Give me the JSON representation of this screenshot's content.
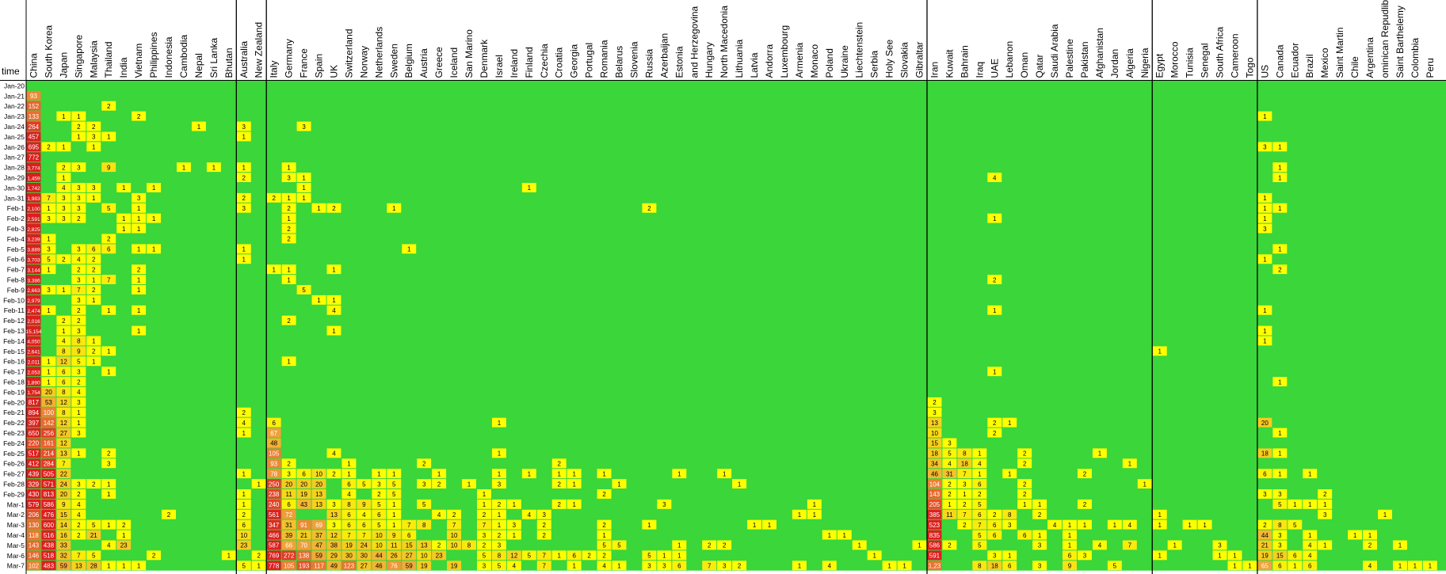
{
  "chart_data": {
    "type": "heatmap",
    "corner_label": "time",
    "columns": [
      "China",
      "South Korea",
      "Japan",
      "Singapore",
      "Malaysia",
      "Thailand",
      "India",
      "Vietnam",
      "Philippines",
      "Indonesia",
      "Cambodia",
      "Nepal",
      "Sri Lanka",
      "Bhutan",
      "Australia",
      "New Zealand",
      "Italy",
      "Germany",
      "France",
      "Spain",
      "UK",
      "Switzerland",
      "Norway",
      "Netherlands",
      "Sweden",
      "Belgium",
      "Austria",
      "Greece",
      "Iceland",
      "San Marino",
      "Denmark",
      "Israel",
      "Ireland",
      "Finland",
      "Czechia",
      "Croatia",
      "Georgia",
      "Portugal",
      "Romania",
      "Belarus",
      "Slovenia",
      "Russia",
      "Azerbaijan",
      "Estonia",
      "and Herzegovina",
      "Hungary",
      "North Macedonia",
      "Lithuania",
      "Latvia",
      "Andorra",
      "Luxembourg",
      "Armenia",
      "Monaco",
      "Poland",
      "Ukraine",
      "Liechtenstein",
      "Serbia",
      "Holy See",
      "Slovakia",
      "Gibraltar",
      "Iran",
      "Kuwait",
      "Bahrain",
      "Iraq",
      "UAE",
      "Lebanon",
      "Oman",
      "Qatar",
      "Saudi Arabia",
      "Palestine",
      "Pakistan",
      "Afghanistan",
      "Jordan",
      "Algeria",
      "Nigeria",
      "Egypt",
      "Morocco",
      "Tunisia",
      "Senegal",
      "South Africa",
      "Cameroon",
      "Togo",
      "US",
      "Canada",
      "Ecuador",
      "Brazil",
      "Mexico",
      "Saint Martin",
      "Chile",
      "Argentina",
      "ominican Repudlib",
      "Saint Barthelemy",
      "Colombia",
      "Peru"
    ],
    "group_breaks_after": [
      "Bhutan",
      "New Zealand",
      "Gibraltar",
      "Nigeria",
      "Togo"
    ],
    "rows": [
      "Jan-20",
      "Jan-21",
      "Jan-22",
      "Jan-23",
      "Jan-24",
      "Jan-25",
      "Jan-26",
      "Jan-27",
      "Jan-28",
      "Jan-29",
      "Jan-30",
      "Jan-31",
      "Feb-1",
      "Feb-2",
      "Feb-3",
      "Feb-4",
      "Feb-5",
      "Feb-6",
      "Feb-7",
      "Feb-8",
      "Feb-9",
      "Feb-10",
      "Feb-11",
      "Feb-12",
      "Feb-13",
      "Feb-14",
      "Feb-15",
      "Feb-16",
      "Feb-17",
      "Feb-18",
      "Feb-19",
      "Feb-20",
      "Feb-21",
      "Feb-22",
      "Feb-23",
      "Feb-24",
      "Feb-25",
      "Feb-26",
      "Feb-27",
      "Feb-28",
      "Feb-29",
      "Mar-1",
      "Mar-2",
      "Mar-3",
      "Mar-4",
      "Mar-5",
      "Mar-6",
      "Mar-7"
    ],
    "color_scale": {
      "zero": "#3ad63a",
      "low": "#ffff00",
      "mid": "#f2a93b",
      "high": "#dd1e1e"
    },
    "cells": {
      "Jan-21": {
        "China": "93"
      },
      "Jan-22": {
        "China": "152",
        "Thailand": "2"
      },
      "Jan-23": {
        "China": "133",
        "Japan": "1",
        "Singapore": "1",
        "Vietnam": "2",
        "US": "1"
      },
      "Jan-24": {
        "China": "264",
        "Singapore": "2",
        "Malaysia": "2",
        "Nepal": "1",
        "Australia": "3",
        "France": "3"
      },
      "Jan-25": {
        "China": "457",
        "Singapore": "1",
        "Malaysia": "3",
        "Thailand": "1",
        "Australia": "1"
      },
      "Jan-26": {
        "China": "695",
        "South Korea": "2",
        "Japan": "1",
        "Malaysia": "1",
        "US": "3",
        "Canada": "1"
      },
      "Jan-27": {
        "China": "772"
      },
      "Jan-28": {
        "China": "3,774",
        "Japan": "2",
        "Singapore": "3",
        "Thailand": "9",
        "Cambodia": "1",
        "Sri Lanka": "1",
        "Australia": "1",
        "Germany": "1",
        "Canada": "1"
      },
      "Jan-29": {
        "China": "1,459",
        "Japan": "1",
        "Australia": "2",
        "Germany": "3",
        "France": "1",
        "UAE": "4",
        "Canada": "1"
      },
      "Jan-30": {
        "China": "1,742",
        "Japan": "4",
        "Singapore": "3",
        "Malaysia": "3",
        "India": "1",
        "Philippines": "1",
        "France": "1",
        "Finland": "1"
      },
      "Jan-31": {
        "China": "1,983",
        "South Korea": "7",
        "Japan": "3",
        "Singapore": "3",
        "Malaysia": "1",
        "Vietnam": "3",
        "Australia": "2",
        "Italy": "2",
        "Germany": "1",
        "France": "1",
        "US": "1"
      },
      "Feb-1": {
        "China": "2,100",
        "South Korea": "1",
        "Japan": "3",
        "Singapore": "3",
        "Thailand": "5",
        "Vietnam": "1",
        "Australia": "3",
        "Germany": "2",
        "Spain": "1",
        "UK": "2",
        "Sweden": "1",
        "Russia": "2",
        "US": "1",
        "Canada": "1"
      },
      "Feb-2": {
        "China": "2,591",
        "South Korea": "3",
        "Japan": "3",
        "Singapore": "2",
        "India": "1",
        "Vietnam": "1",
        "Philippines": "1",
        "Germany": "1",
        "UAE": "1",
        "US": "1"
      },
      "Feb-3": {
        "China": "2,825",
        "India": "1",
        "Vietnam": "1",
        "Germany": "2",
        "US": "3"
      },
      "Feb-4": {
        "China": "3,239",
        "South Korea": "1",
        "Thailand": "2",
        "Germany": "2"
      },
      "Feb-5": {
        "China": "3,889",
        "South Korea": "3",
        "Singapore": "3",
        "Malaysia": "6",
        "Thailand": "6",
        "Vietnam": "1",
        "Philippines": "1",
        "Australia": "1",
        "Belgium": "1",
        "Canada": "1"
      },
      "Feb-6": {
        "China": "3,703",
        "South Korea": "5",
        "Japan": "2",
        "Singapore": "4",
        "Malaysia": "2",
        "Australia": "1",
        "US": "1"
      },
      "Feb-7": {
        "China": "3,144",
        "South Korea": "1",
        "Singapore": "2",
        "Malaysia": "2",
        "Vietnam": "2",
        "Italy": "1",
        "Germany": "1",
        "UK": "1",
        "Canada": "2"
      },
      "Feb-8": {
        "China": "3,386",
        "Singapore": "3",
        "Malaysia": "1",
        "Thailand": "7",
        "Vietnam": "1",
        "Germany": "1",
        "UAE": "2"
      },
      "Feb-9": {
        "China": "2,663",
        "South Korea": "3",
        "Japan": "1",
        "Singapore": "7",
        "Malaysia": "2",
        "Vietnam": "1",
        "France": "5"
      },
      "Feb-10": {
        "China": "2,979",
        "Singapore": "3",
        "Malaysia": "1",
        "Spain": "1",
        "UK": "1"
      },
      "Feb-11": {
        "China": "2,474",
        "South Korea": "1",
        "Singapore": "2",
        "Thailand": "1",
        "Vietnam": "1",
        "UK": "4",
        "UAE": "1",
        "US": "1"
      },
      "Feb-12": {
        "China": "2,016",
        "Japan": "2",
        "Singapore": "2",
        "Germany": "2"
      },
      "Feb-13": {
        "China": "15,154",
        "Japan": "1",
        "Singapore": "3",
        "Vietnam": "1",
        "UK": "1",
        "US": "1"
      },
      "Feb-14": {
        "China": "4,050",
        "Japan": "4",
        "Singapore": "8",
        "Malaysia": "1",
        "US": "1"
      },
      "Feb-15": {
        "China": "2,641",
        "Japan": "8",
        "Singapore": "9",
        "Malaysia": "2",
        "Thailand": "1",
        "Egypt": "1"
      },
      "Feb-16": {
        "China": "2,011",
        "South Korea": "1",
        "Japan": "12",
        "Singapore": "5",
        "Malaysia": "1",
        "Germany": "1"
      },
      "Feb-17": {
        "China": "2,053",
        "South Korea": "1",
        "Japan": "6",
        "Singapore": "3",
        "Thailand": "1",
        "UAE": "1"
      },
      "Feb-18": {
        "China": "1,890",
        "South Korea": "1",
        "Japan": "6",
        "Singapore": "2",
        "Canada": "1"
      },
      "Feb-19": {
        "China": "1,754",
        "South Korea": "20",
        "Japan": "8",
        "Singapore": "4"
      },
      "Feb-20": {
        "China": "817",
        "South Korea": "53",
        "Japan": "12",
        "Singapore": "3",
        "Iran": "2"
      },
      "Feb-21": {
        "China": "894",
        "South Korea": "100",
        "Japan": "8",
        "Singapore": "1",
        "Australia": "2",
        "Iran": "3"
      },
      "Feb-22": {
        "China": "397",
        "South Korea": "142",
        "Japan": "12",
        "Singapore": "1",
        "Australia": "4",
        "Italy": "6",
        "Israel": "1",
        "Iran": "13",
        "UAE": "2",
        "Lebanon": "1",
        "US": "20"
      },
      "Feb-23": {
        "China": "650",
        "South Korea": "256",
        "Japan": "27",
        "Singapore": "3",
        "Australia": "1",
        "Italy": "67",
        "Iran": "10",
        "UAE": "2",
        "Canada": "1"
      },
      "Feb-24": {
        "China": "220",
        "South Korea": "161",
        "Japan": "12",
        "Italy": "48",
        "Iran": "15",
        "Kuwait": "3"
      },
      "Feb-25": {
        "China": "517",
        "South Korea": "214",
        "Japan": "13",
        "Singapore": "1",
        "Thailand": "2",
        "Italy": "105",
        "UK": "4",
        "Israel": "1",
        "Iran": "18",
        "Kuwait": "5",
        "Bahrain": "8",
        "Iraq": "1",
        "Oman": "2",
        "Afghanistan": "1",
        "US": "18",
        "Canada": "1"
      },
      "Feb-26": {
        "China": "412",
        "South Korea": "284",
        "Japan": "7",
        "Thailand": "3",
        "Italy": "93",
        "Germany": "2",
        "Switzerland": "1",
        "Austria": "2",
        "Croatia": "2",
        "Iran": "34",
        "Kuwait": "4",
        "Bahrain": "18",
        "Iraq": "4",
        "Oman": "2",
        "Algeria": "1"
      },
      "Feb-27": {
        "China": "439",
        "South Korea": "505",
        "Japan": "22",
        "Australia": "1",
        "Italy": "78",
        "Germany": "3",
        "France": "6",
        "Spain": "10",
        "UK": "2",
        "Switzerland": "1",
        "Netherlands": "1",
        "Sweden": "1",
        "Greece": "1",
        "Israel": "1",
        "Finland": "1",
        "Croatia": "1",
        "Georgia": "1",
        "Romania": "1",
        "Estonia": "1",
        "North Macedonia": "1",
        "Iran": "46",
        "Kuwait": "31",
        "Bahrain": "7",
        "Iraq": "1",
        "Lebanon": "1",
        "Pakistan": "2",
        "US": "6",
        "Canada": "1",
        "Brazil": "1"
      },
      "Feb-28": {
        "China": "329",
        "South Korea": "571",
        "Japan": "24",
        "Singapore": "3",
        "Malaysia": "2",
        "Thailand": "1",
        "New Zealand": "1",
        "Italy": "250",
        "Germany": "20",
        "France": "20",
        "Spain": "20",
        "Switzerland": "6",
        "Norway": "5",
        "Netherlands": "3",
        "Sweden": "5",
        "Austria": "3",
        "Greece": "2",
        "San Marino": "1",
        "Israel": "3",
        "Croatia": "2",
        "Georgia": "1",
        "Belarus": "1",
        "Lithuania": "1",
        "Iran": "104",
        "Kuwait": "2",
        "Bahrain": "3",
        "Iraq": "6",
        "Oman": "2",
        "Nigeria": "1"
      },
      "Feb-29": {
        "China": "430",
        "South Korea": "813",
        "Japan": "20",
        "Singapore": "2",
        "Thailand": "1",
        "Australia": "1",
        "Italy": "238",
        "Germany": "11",
        "France": "19",
        "Spain": "13",
        "Switzerland": "4",
        "Netherlands": "2",
        "Sweden": "5",
        "Denmark": "1",
        "Romania": "2",
        "Iran": "143",
        "Kuwait": "2",
        "Bahrain": "1",
        "Iraq": "2",
        "Oman": "2",
        "US": "3",
        "Canada": "3",
        "Mexico": "2"
      },
      "Mar-1": {
        "China": "579",
        "South Korea": "586",
        "Japan": "9",
        "Singapore": "4",
        "Australia": "1",
        "Italy": "240",
        "Germany": "6",
        "France": "43",
        "Spain": "13",
        "UK": "3",
        "Switzerland": "8",
        "Norway": "9",
        "Netherlands": "5",
        "Sweden": "1",
        "Austria": "5",
        "Denmark": "1",
        "Israel": "2",
        "Ireland": "1",
        "Croatia": "2",
        "Georgia": "1",
        "Azerbaijan": "3",
        "Monaco": "1",
        "Iran": "205",
        "Kuwait": "1",
        "Bahrain": "2",
        "Iraq": "5",
        "Oman": "1",
        "Qatar": "1",
        "Pakistan": "2",
        "Canada": "5",
        "Ecuador": "1",
        "Brazil": "1",
        "Mexico": "1"
      },
      "Mar-2": {
        "China": "206",
        "South Korea": "476",
        "Japan": "15",
        "Singapore": "4",
        "Indonesia": "2",
        "Australia": "2",
        "Italy": "561",
        "Germany": "72",
        "UK": "13",
        "Switzerland": "6",
        "Norway": "4",
        "Netherlands": "6",
        "Sweden": "1",
        "Greece": "4",
        "Iceland": "2",
        "Denmark": "2",
        "Israel": "1",
        "Finland": "4",
        "Czechia": "3",
        "Armenia": "1",
        "Monaco": "1",
        "Iran": "385",
        "Kuwait": "11",
        "Bahrain": "7",
        "Iraq": "6",
        "UAE": "2",
        "Lebanon": "8",
        "Qatar": "2",
        "Egypt": "1",
        "Mexico": "3",
        "ominican Repudlib": "1"
      },
      "Mar-3": {
        "China": "130",
        "South Korea": "600",
        "Japan": "14",
        "Singapore": "2",
        "Malaysia": "5",
        "Thailand": "1",
        "India": "2",
        "Australia": "6",
        "Italy": "347",
        "Germany": "31",
        "France": "91",
        "Spain": "69",
        "UK": "3",
        "Switzerland": "6",
        "Norway": "6",
        "Netherlands": "5",
        "Sweden": "1",
        "Belgium": "7",
        "Austria": "8",
        "Iceland": "7",
        "Denmark": "7",
        "Israel": "1",
        "Ireland": "3",
        "Czechia": "2",
        "Romania": "2",
        "Russia": "1",
        "Latvia": "1",
        "Andorra": "1",
        "Iran": "523",
        "Bahrain": "2",
        "Iraq": "7",
        "UAE": "6",
        "Lebanon": "3",
        "Saudi Arabia": "4",
        "Palestine": "1",
        "Pakistan": "1",
        "Jordan": "1",
        "Algeria": "4",
        "Egypt": "1",
        "Tunisia": "1",
        "Senegal": "1",
        "US": "2",
        "Canada": "8",
        "Ecuador": "5"
      },
      "Mar-4": {
        "China": "118",
        "South Korea": "516",
        "Japan": "16",
        "Singapore": "2",
        "Malaysia": "21",
        "India": "1",
        "Australia": "10",
        "Italy": "466",
        "Germany": "39",
        "France": "21",
        "Spain": "37",
        "UK": "12",
        "Switzerland": "7",
        "Norway": "7",
        "Netherlands": "10",
        "Sweden": "9",
        "Belgium": "6",
        "Iceland": "10",
        "Denmark": "3",
        "Israel": "2",
        "Ireland": "1",
        "Czechia": "2",
        "Romania": "1",
        "Poland": "1",
        "Ukraine": "1",
        "Iran": "835",
        "Iraq": "5",
        "UAE": "6",
        "Oman": "6",
        "Qatar": "1",
        "Palestine": "1",
        "US": "44",
        "Canada": "3",
        "Brazil": "1",
        "Chile": "1",
        "Argentina": "1"
      },
      "Mar-5": {
        "China": "143",
        "South Korea": "438",
        "Japan": "33",
        "Thailand": "4",
        "India": "23",
        "Australia": "23",
        "Italy": "587",
        "Germany": "66",
        "France": "70",
        "Spain": "47",
        "UK": "38",
        "Switzerland": "19",
        "Norway": "24",
        "Netherlands": "10",
        "Sweden": "11",
        "Belgium": "15",
        "Austria": "13",
        "Greece": "2",
        "Iceland": "10",
        "San Marino": "8",
        "Denmark": "2",
        "Israel": "3",
        "Romania": "5",
        "Belarus": "5",
        "Estonia": "1",
        "Hungary": "2",
        "North Macedonia": "2",
        "Liechtenstein": "1",
        "Gibraltar": "1",
        "Iran": "586",
        "Kuwait": "2",
        "Iraq": "5",
        "Qatar": "3",
        "Palestine": "1",
        "Afghanistan": "4",
        "Algeria": "7",
        "Morocco": "1",
        "South Africa": "3",
        "US": "21",
        "Canada": "3",
        "Brazil": "4",
        "Mexico": "1",
        "Argentina": "2",
        "Saint Barthelemy": "1"
      },
      "Mar-6": {
        "China": "146",
        "South Korea": "518",
        "Japan": "32",
        "Singapore": "7",
        "Malaysia": "5",
        "Philippines": "2",
        "Bhutan": "1",
        "New Zealand": "2",
        "Italy": "769",
        "Germany": "272",
        "France": "138",
        "Spain": "59",
        "UK": "29",
        "Switzerland": "30",
        "Norway": "30",
        "Netherlands": "44",
        "Sweden": "26",
        "Belgium": "27",
        "Austria": "10",
        "Greece": "23",
        "Denmark": "5",
        "Israel": "8",
        "Ireland": "12",
        "Finland": "5",
        "Czechia": "7",
        "Croatia": "1",
        "Georgia": "6",
        "Portugal": "2",
        "Romania": "2",
        "Russia": "5",
        "Azerbaijan": "1",
        "Estonia": "1",
        "Serbia": "1",
        "Iran": "591",
        "UAE": "3",
        "Lebanon": "1",
        "Palestine": "6",
        "Pakistan": "3",
        "Egypt": "1",
        "South Africa": "1",
        "Cameroon": "1",
        "US": "19",
        "Canada": "15",
        "Ecuador": "6",
        "Brazil": "4"
      },
      "Mar-7": {
        "China": "102",
        "South Korea": "483",
        "Japan": "59",
        "Singapore": "13",
        "Malaysia": "28",
        "Thailand": "1",
        "India": "1",
        "Vietnam": "1",
        "Australia": "5",
        "New Zealand": "1",
        "Italy": "778",
        "Germany": "105",
        "France": "193",
        "Spain": "117",
        "UK": "49",
        "Switzerland": "123",
        "Norway": "27",
        "Netherlands": "46",
        "Sweden": "76",
        "Belgium": "59",
        "Austria": "19",
        "Iceland": "19",
        "Denmark": "3",
        "Israel": "5",
        "Ireland": "4",
        "Czechia": "7",
        "Georgia": "1",
        "Romania": "4",
        "Belarus": "1",
        "Russia": "3",
        "Azerbaijan": "3",
        "Estonia": "6",
        "Hungary": "7",
        "North Macedonia": "3",
        "Lithuania": "2",
        "Armenia": "1",
        "Poland": "4",
        "Holy See": "1",
        "Slovakia": "1",
        "Iran": "1,23",
        "Iraq": "8",
        "UAE": "18",
        "Lebanon": "6",
        "Qatar": "3",
        "Palestine": "9",
        "Jordan": "5",
        "Cameroon": "1",
        "Togo": "1",
        "US": "65",
        "Canada": "6",
        "Ecuador": "1",
        "Brazil": "6",
        "Argentina": "4",
        "Saint Barthelemy": "1",
        "Colombia": "1",
        "Peru": "1"
      }
    }
  }
}
